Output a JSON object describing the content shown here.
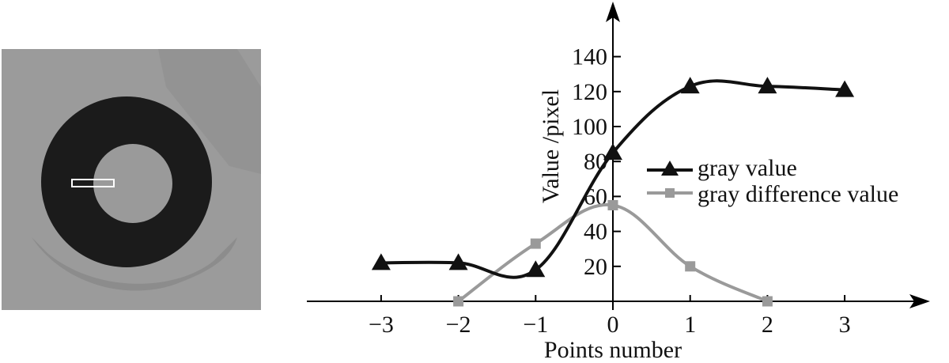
{
  "colors": {
    "background": "#ffffff",
    "axis": "#000000",
    "series_gray_value": "#111111",
    "series_gray_difference": "#9a9a9a",
    "photo_background": "#9b9b9b",
    "photo_ring": "#1b1b1b",
    "photo_hole": "#9a9a9a",
    "roi_box": "#ffffff"
  },
  "photo": {
    "description_icon": "ring-marker-photo-icon"
  },
  "chart_data": {
    "type": "line",
    "xlabel": "Points number",
    "ylabel": "Value /pixel",
    "xlim": [
      -3.9,
      3.9
    ],
    "ylim": [
      0,
      150
    ],
    "xticks": [
      -3,
      -2,
      -1,
      0,
      1,
      2,
      3
    ],
    "xtick_labels": [
      "−3",
      "−2",
      "−1",
      "0",
      "1",
      "2",
      "3"
    ],
    "yticks": [
      20,
      40,
      60,
      80,
      100,
      120,
      140
    ],
    "ytick_labels": [
      "20",
      "40",
      "60",
      "80",
      "100",
      "120",
      "140"
    ],
    "legend_position": "center-right",
    "series": [
      {
        "name": "gray value",
        "marker": "triangle",
        "x": [
          -3,
          -2,
          -1,
          0,
          1,
          2,
          3
        ],
        "values": [
          22,
          22,
          18,
          85,
          123,
          123,
          121
        ]
      },
      {
        "name": "gray difference value",
        "marker": "square",
        "x": [
          -2,
          -1,
          0,
          1,
          2
        ],
        "values": [
          0,
          33,
          55,
          20,
          0
        ]
      }
    ]
  }
}
